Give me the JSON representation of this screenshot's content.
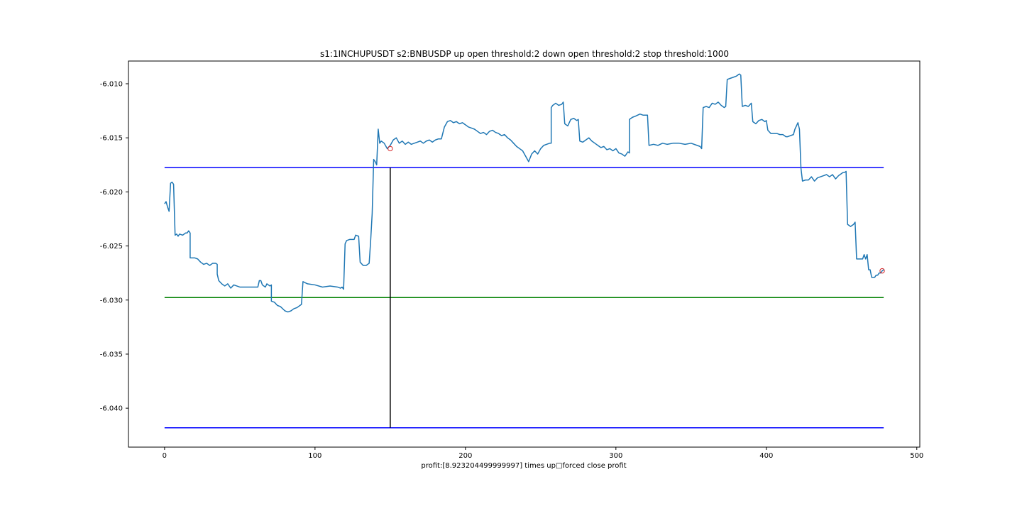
{
  "chart_data": {
    "type": "line",
    "title": "s1:1INCHUPUSDT s2:BNBUSDP up open threshold:2 down open threshold:2 stop threshold:1000",
    "xlabel": "profit:[8.923204499999997] times up□forced close profit",
    "ylabel": "",
    "xlim": [
      -24,
      502
    ],
    "ylim": [
      -6.0436,
      -6.0079
    ],
    "xticks": [
      0,
      100,
      200,
      300,
      400,
      500
    ],
    "xtick_labels": [
      "0",
      "100",
      "200",
      "300",
      "400",
      "500"
    ],
    "yticks": [
      -6.04,
      -6.035,
      -6.03,
      -6.025,
      -6.02,
      -6.015,
      -6.01
    ],
    "ytick_labels": [
      "-6.040",
      "-6.035",
      "-6.030",
      "-6.025",
      "-6.020",
      "-6.015",
      "-6.010"
    ],
    "grid": false,
    "series": [
      {
        "color": "#1f77b4",
        "points": [
          [
            0,
            -6.0211
          ],
          [
            1,
            -6.0209
          ],
          [
            2,
            -6.0214
          ],
          [
            3,
            -6.0218
          ],
          [
            4,
            -6.0192
          ],
          [
            5,
            -6.0191
          ],
          [
            6,
            -6.0193
          ],
          [
            7,
            -6.024
          ],
          [
            8,
            -6.0239
          ],
          [
            9,
            -6.0241
          ],
          [
            10,
            -6.0239
          ],
          [
            12,
            -6.024
          ],
          [
            14,
            -6.0238
          ],
          [
            15,
            -6.0238
          ],
          [
            16,
            -6.0236
          ],
          [
            17,
            -6.0238
          ],
          [
            17,
            -6.0261
          ],
          [
            20,
            -6.0261
          ],
          [
            22,
            -6.0262
          ],
          [
            24,
            -6.0265
          ],
          [
            26,
            -6.0267
          ],
          [
            28,
            -6.0266
          ],
          [
            30,
            -6.0268
          ],
          [
            32,
            -6.0266
          ],
          [
            34,
            -6.0266
          ],
          [
            35,
            -6.0267
          ],
          [
            35,
            -6.0276
          ],
          [
            36,
            -6.0282
          ],
          [
            38,
            -6.0285
          ],
          [
            40,
            -6.0287
          ],
          [
            42,
            -6.0285
          ],
          [
            44,
            -6.0289
          ],
          [
            46,
            -6.0286
          ],
          [
            48,
            -6.0287
          ],
          [
            50,
            -6.0288
          ],
          [
            55,
            -6.0288
          ],
          [
            60,
            -6.0288
          ],
          [
            62,
            -6.0288
          ],
          [
            63,
            -6.0282
          ],
          [
            64,
            -6.0282
          ],
          [
            65,
            -6.0286
          ],
          [
            67,
            -6.0288
          ],
          [
            68,
            -6.0285
          ],
          [
            70,
            -6.0287
          ],
          [
            71,
            -6.0286
          ],
          [
            71,
            -6.0301
          ],
          [
            73,
            -6.0302
          ],
          [
            75,
            -6.0305
          ],
          [
            77,
            -6.0306
          ],
          [
            80,
            -6.031
          ],
          [
            82,
            -6.0311
          ],
          [
            84,
            -6.031
          ],
          [
            86,
            -6.0308
          ],
          [
            88,
            -6.0307
          ],
          [
            90,
            -6.0305
          ],
          [
            91,
            -6.0304
          ],
          [
            92,
            -6.0283
          ],
          [
            95,
            -6.0285
          ],
          [
            100,
            -6.0286
          ],
          [
            105,
            -6.0288
          ],
          [
            110,
            -6.0287
          ],
          [
            115,
            -6.0288
          ],
          [
            117,
            -6.0289
          ],
          [
            118,
            -6.0288
          ],
          [
            119,
            -6.029
          ],
          [
            120,
            -6.0248
          ],
          [
            121,
            -6.0245
          ],
          [
            123,
            -6.0244
          ],
          [
            125,
            -6.0244
          ],
          [
            126,
            -6.0244
          ],
          [
            127,
            -6.024
          ],
          [
            129,
            -6.0241
          ],
          [
            130,
            -6.0265
          ],
          [
            132,
            -6.0268
          ],
          [
            134,
            -6.0268
          ],
          [
            136,
            -6.0266
          ],
          [
            137,
            -6.0245
          ],
          [
            138,
            -6.022
          ],
          [
            139,
            -6.017
          ],
          [
            140,
            -6.0172
          ],
          [
            141,
            -6.0175
          ],
          [
            142,
            -6.0142
          ],
          [
            143,
            -6.0155
          ],
          [
            144,
            -6.0153
          ],
          [
            146,
            -6.0155
          ],
          [
            148,
            -6.016
          ],
          [
            150,
            -6.0157
          ],
          [
            152,
            -6.0152
          ],
          [
            154,
            -6.015
          ],
          [
            156,
            -6.0155
          ],
          [
            158,
            -6.0153
          ],
          [
            160,
            -6.0156
          ],
          [
            162,
            -6.0154
          ],
          [
            164,
            -6.0156
          ],
          [
            166,
            -6.0155
          ],
          [
            168,
            -6.0154
          ],
          [
            170,
            -6.0153
          ],
          [
            172,
            -6.0155
          ],
          [
            174,
            -6.0153
          ],
          [
            176,
            -6.0152
          ],
          [
            178,
            -6.0154
          ],
          [
            180,
            -6.0152
          ],
          [
            182,
            -6.0151
          ],
          [
            184,
            -6.0151
          ],
          [
            186,
            -6.014
          ],
          [
            188,
            -6.0135
          ],
          [
            190,
            -6.0134
          ],
          [
            192,
            -6.0136
          ],
          [
            194,
            -6.0135
          ],
          [
            196,
            -6.0137
          ],
          [
            198,
            -6.0136
          ],
          [
            200,
            -6.0138
          ],
          [
            202,
            -6.014
          ],
          [
            204,
            -6.0141
          ],
          [
            206,
            -6.0142
          ],
          [
            208,
            -6.0144
          ],
          [
            210,
            -6.0146
          ],
          [
            212,
            -6.0145
          ],
          [
            214,
            -6.0147
          ],
          [
            216,
            -6.0144
          ],
          [
            218,
            -6.0143
          ],
          [
            220,
            -6.0145
          ],
          [
            222,
            -6.0146
          ],
          [
            224,
            -6.0148
          ],
          [
            226,
            -6.0147
          ],
          [
            228,
            -6.015
          ],
          [
            230,
            -6.0152
          ],
          [
            232,
            -6.0155
          ],
          [
            234,
            -6.0158
          ],
          [
            236,
            -6.016
          ],
          [
            238,
            -6.0162
          ],
          [
            240,
            -6.0167
          ],
          [
            242,
            -6.0172
          ],
          [
            244,
            -6.0165
          ],
          [
            246,
            -6.0162
          ],
          [
            248,
            -6.0165
          ],
          [
            250,
            -6.016
          ],
          [
            252,
            -6.0157
          ],
          [
            254,
            -6.0156
          ],
          [
            256,
            -6.0155
          ],
          [
            257,
            -6.0155
          ],
          [
            257,
            -6.0122
          ],
          [
            258,
            -6.012
          ],
          [
            260,
            -6.0118
          ],
          [
            262,
            -6.012
          ],
          [
            264,
            -6.0119
          ],
          [
            265,
            -6.0117
          ],
          [
            266,
            -6.0137
          ],
          [
            268,
            -6.0139
          ],
          [
            270,
            -6.0133
          ],
          [
            272,
            -6.0132
          ],
          [
            274,
            -6.0134
          ],
          [
            275,
            -6.0133
          ],
          [
            276,
            -6.0153
          ],
          [
            278,
            -6.0154
          ],
          [
            280,
            -6.0152
          ],
          [
            282,
            -6.015
          ],
          [
            284,
            -6.0153
          ],
          [
            286,
            -6.0155
          ],
          [
            288,
            -6.0157
          ],
          [
            290,
            -6.0159
          ],
          [
            292,
            -6.0158
          ],
          [
            294,
            -6.0161
          ],
          [
            296,
            -6.016
          ],
          [
            298,
            -6.0162
          ],
          [
            300,
            -6.016
          ],
          [
            302,
            -6.0164
          ],
          [
            304,
            -6.0165
          ],
          [
            306,
            -6.0167
          ],
          [
            308,
            -6.0163
          ],
          [
            309,
            -6.0164
          ],
          [
            309,
            -6.0133
          ],
          [
            311,
            -6.0131
          ],
          [
            313,
            -6.013
          ],
          [
            316,
            -6.0128
          ],
          [
            318,
            -6.0129
          ],
          [
            321,
            -6.0129
          ],
          [
            322,
            -6.0157
          ],
          [
            325,
            -6.0156
          ],
          [
            328,
            -6.0157
          ],
          [
            331,
            -6.0155
          ],
          [
            334,
            -6.0156
          ],
          [
            338,
            -6.0155
          ],
          [
            342,
            -6.0155
          ],
          [
            346,
            -6.0156
          ],
          [
            350,
            -6.0155
          ],
          [
            354,
            -6.0157
          ],
          [
            356,
            -6.0158
          ],
          [
            357,
            -6.016
          ],
          [
            358,
            -6.0122
          ],
          [
            360,
            -6.0121
          ],
          [
            362,
            -6.0122
          ],
          [
            364,
            -6.0118
          ],
          [
            366,
            -6.0119
          ],
          [
            368,
            -6.0117
          ],
          [
            370,
            -6.012
          ],
          [
            372,
            -6.0122
          ],
          [
            373,
            -6.0121
          ],
          [
            374,
            -6.0096
          ],
          [
            376,
            -6.0095
          ],
          [
            378,
            -6.0094
          ],
          [
            380,
            -6.0093
          ],
          [
            382,
            -6.0091
          ],
          [
            383,
            -6.0092
          ],
          [
            384,
            -6.0121
          ],
          [
            386,
            -6.012
          ],
          [
            388,
            -6.0121
          ],
          [
            390,
            -6.0118
          ],
          [
            391,
            -6.0135
          ],
          [
            393,
            -6.0137
          ],
          [
            395,
            -6.0134
          ],
          [
            397,
            -6.0133
          ],
          [
            399,
            -6.0135
          ],
          [
            400,
            -6.0134
          ],
          [
            401,
            -6.0143
          ],
          [
            403,
            -6.0146
          ],
          [
            405,
            -6.0146
          ],
          [
            407,
            -6.0146
          ],
          [
            409,
            -6.0147
          ],
          [
            411,
            -6.0147
          ],
          [
            413,
            -6.0149
          ],
          [
            414,
            -6.0149
          ],
          [
            416,
            -6.0148
          ],
          [
            418,
            -6.0147
          ],
          [
            419,
            -6.0142
          ],
          [
            420,
            -6.0139
          ],
          [
            421,
            -6.0136
          ],
          [
            422,
            -6.0142
          ],
          [
            423,
            -6.0178
          ],
          [
            424,
            -6.019
          ],
          [
            426,
            -6.0189
          ],
          [
            428,
            -6.0189
          ],
          [
            430,
            -6.0186
          ],
          [
            432,
            -6.019
          ],
          [
            434,
            -6.0187
          ],
          [
            436,
            -6.0186
          ],
          [
            438,
            -6.0185
          ],
          [
            440,
            -6.0184
          ],
          [
            442,
            -6.0186
          ],
          [
            444,
            -6.0184
          ],
          [
            446,
            -6.0188
          ],
          [
            448,
            -6.0185
          ],
          [
            450,
            -6.0183
          ],
          [
            451,
            -6.0182
          ],
          [
            452,
            -6.0182
          ],
          [
            453,
            -6.0181
          ],
          [
            454,
            -6.023
          ],
          [
            456,
            -6.0232
          ],
          [
            458,
            -6.023
          ],
          [
            459,
            -6.0228
          ],
          [
            460,
            -6.0262
          ],
          [
            462,
            -6.0262
          ],
          [
            464,
            -6.0262
          ],
          [
            465,
            -6.0258
          ],
          [
            466,
            -6.0262
          ],
          [
            467,
            -6.0258
          ],
          [
            468,
            -6.0272
          ],
          [
            469,
            -6.0272
          ],
          [
            470,
            -6.0279
          ],
          [
            472,
            -6.0279
          ],
          [
            473,
            -6.0277
          ],
          [
            474,
            -6.0277
          ],
          [
            475,
            -6.0275
          ],
          [
            476,
            -6.0275
          ],
          [
            477,
            -6.0273
          ],
          [
            478,
            -6.0272
          ]
        ]
      }
    ],
    "hlines": [
      {
        "y": -6.01775,
        "xmin": 0,
        "xmax": 478,
        "color": "#0000ff"
      },
      {
        "y": -6.02977,
        "xmin": 0,
        "xmax": 478,
        "color": "#008000"
      },
      {
        "y": -6.04181,
        "xmin": 0,
        "xmax": 478,
        "color": "#0000ff"
      }
    ],
    "vlines": [
      {
        "x": 150,
        "ymin": -6.04181,
        "ymax": -6.01775,
        "color": "#000000"
      }
    ],
    "markers": [
      {
        "x": 150,
        "y": -6.016,
        "color": "#d62728",
        "shape": "circle"
      },
      {
        "x": 477,
        "y": -6.0273,
        "color": "#d62728",
        "shape": "circle"
      }
    ]
  }
}
